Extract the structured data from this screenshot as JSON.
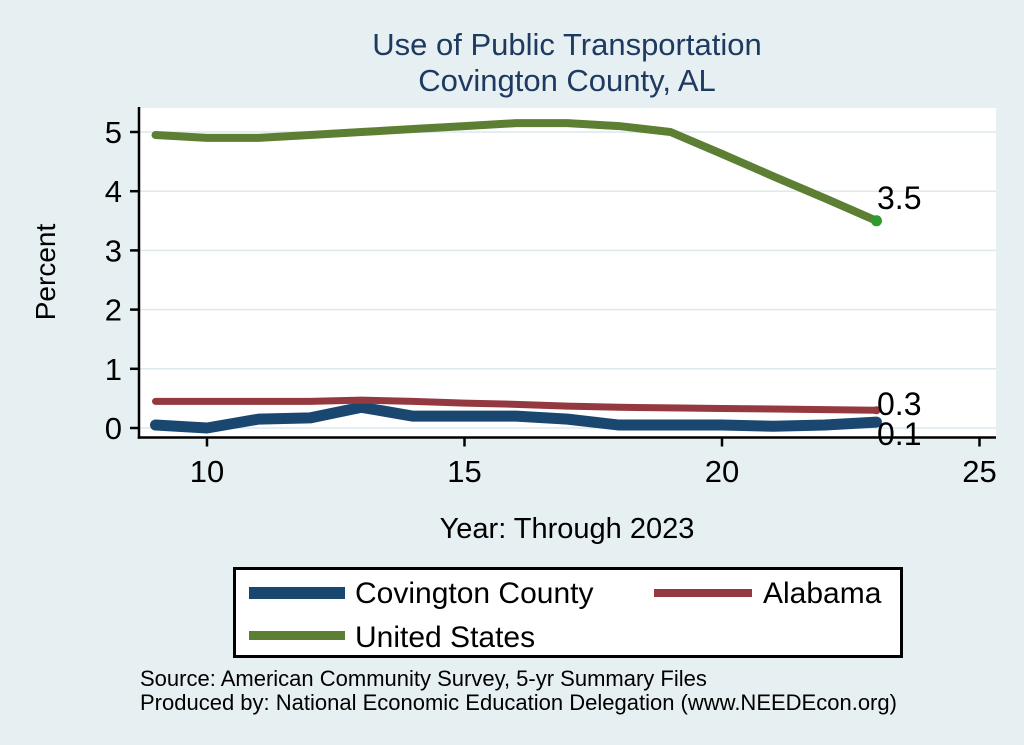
{
  "title": {
    "line1": "Use of Public Transportation",
    "line2": "Covington County, AL"
  },
  "colors": {
    "background": "#e6eff1",
    "plot_background": "#ffffff",
    "grid": "#dce9ed",
    "axis": "#000000",
    "title_text": "#1e3a60",
    "navy": "#1a476f",
    "maroon": "#94393f",
    "olive": "#5d7f33",
    "end_marker_green": "#2e9b2e"
  },
  "chart_data": {
    "type": "line",
    "x": [
      9,
      10,
      11,
      12,
      13,
      14,
      15,
      16,
      17,
      18,
      19,
      20,
      21,
      22,
      23
    ],
    "series": [
      {
        "name": "Covington County",
        "color": "#1a476f",
        "width": 11,
        "marker_r": 5,
        "marker_color": "#1a476f",
        "values": [
          0.05,
          0.0,
          0.15,
          0.17,
          0.35,
          0.2,
          0.2,
          0.2,
          0.15,
          0.05,
          0.05,
          0.05,
          0.03,
          0.05,
          0.1
        ],
        "end_label": "0.1"
      },
      {
        "name": "Alabama",
        "color": "#94393f",
        "width": 7,
        "marker_r": 4,
        "marker_color": "#94393f",
        "values": [
          0.45,
          0.45,
          0.45,
          0.45,
          0.47,
          0.45,
          0.42,
          0.4,
          0.37,
          0.35,
          0.34,
          0.33,
          0.32,
          0.31,
          0.3
        ],
        "end_label": "0.3"
      },
      {
        "name": "United States",
        "color": "#5d7f33",
        "width": 8,
        "marker_r": 5.5,
        "marker_color": "#2e9b2e",
        "values": [
          4.95,
          4.9,
          4.9,
          4.95,
          5.0,
          5.05,
          5.1,
          5.15,
          5.15,
          5.1,
          5.0,
          4.63,
          4.25,
          3.88,
          3.5
        ],
        "end_label": "3.5"
      }
    ],
    "xlabel": "Year: Through 2023",
    "ylabel": "Percent",
    "x_ticks": [
      10,
      15,
      20,
      25
    ],
    "y_ticks": [
      0,
      1,
      2,
      3,
      4,
      5
    ],
    "xlim": [
      8.67,
      25.32
    ],
    "ylim": [
      -0.16,
      5.41
    ],
    "grid": "horizontal",
    "legend_position": "bottom"
  },
  "footer": {
    "line1": "Source: American Community Survey, 5-yr Summary Files",
    "line2": "Produced by: National Economic Education Delegation (www.NEEDEcon.org)"
  }
}
